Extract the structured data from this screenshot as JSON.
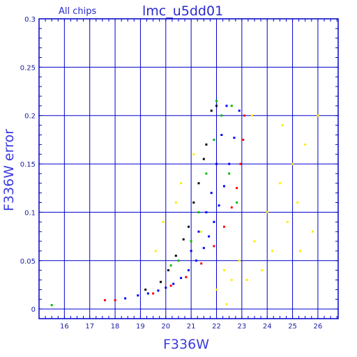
{
  "chart_data": {
    "type": "scatter",
    "title": "lmc_u5dd01",
    "subtitle": "All chips",
    "xlabel": "F336W",
    "ylabel": "F336W error",
    "xlim": [
      15.0,
      26.8
    ],
    "ylim": [
      -0.01,
      0.3
    ],
    "x_ticks": [
      16,
      17,
      18,
      19,
      20,
      21,
      22,
      23,
      24,
      25,
      26
    ],
    "y_ticks": [
      0,
      0.05,
      0.1,
      0.15,
      0.2,
      0.25,
      0.3
    ],
    "y_tick_labels": [
      "0",
      "0.05",
      "0.1",
      "0.15",
      "0.2",
      "0.25",
      "0.3"
    ],
    "grid": true,
    "colors": {
      "frame": "#0000cc",
      "grid": "#0000cc",
      "chip_black": "#000000",
      "chip_green": "#00bb00",
      "chip_blue": "#0000ff",
      "chip_red": "#ff0000",
      "outlier_yellow": "#ffee00"
    },
    "series": [
      {
        "color": "#0000ff",
        "points": [
          [
            18.4,
            0.011
          ],
          [
            18.9,
            0.014
          ],
          [
            19.3,
            0.016
          ],
          [
            19.7,
            0.019
          ],
          [
            20.0,
            0.022
          ],
          [
            20.3,
            0.026
          ],
          [
            20.6,
            0.032
          ],
          [
            20.9,
            0.04
          ],
          [
            21.2,
            0.05
          ],
          [
            21.5,
            0.063
          ],
          [
            21.7,
            0.075
          ],
          [
            21.9,
            0.09
          ],
          [
            22.1,
            0.107
          ],
          [
            22.3,
            0.127
          ],
          [
            22.5,
            0.15
          ],
          [
            22.7,
            0.177
          ],
          [
            22.9,
            0.205
          ],
          [
            21.0,
            0.06
          ],
          [
            21.3,
            0.08
          ],
          [
            21.6,
            0.1
          ],
          [
            21.8,
            0.12
          ],
          [
            22.0,
            0.15
          ],
          [
            22.2,
            0.18
          ],
          [
            22.4,
            0.21
          ]
        ]
      },
      {
        "color": "#ff0000",
        "points": [
          [
            17.6,
            0.009
          ],
          [
            18.0,
            0.009
          ],
          [
            19.5,
            0.016
          ],
          [
            20.2,
            0.024
          ],
          [
            20.8,
            0.033
          ],
          [
            21.4,
            0.047
          ],
          [
            21.9,
            0.065
          ],
          [
            22.3,
            0.085
          ],
          [
            22.6,
            0.105
          ],
          [
            22.8,
            0.125
          ],
          [
            22.95,
            0.15
          ],
          [
            23.05,
            0.175
          ],
          [
            23.1,
            0.2
          ]
        ]
      },
      {
        "color": "#00bb00",
        "points": [
          [
            15.5,
            0.004
          ],
          [
            20.2,
            0.045
          ],
          [
            20.5,
            0.05
          ],
          [
            21.0,
            0.07
          ],
          [
            21.3,
            0.1
          ],
          [
            21.6,
            0.14
          ],
          [
            21.9,
            0.175
          ],
          [
            22.2,
            0.2
          ],
          [
            22.5,
            0.14
          ],
          [
            22.8,
            0.11
          ],
          [
            22.0,
            0.215
          ],
          [
            22.6,
            0.21
          ]
        ]
      },
      {
        "color": "#000000",
        "points": [
          [
            19.2,
            0.02
          ],
          [
            19.8,
            0.028
          ],
          [
            20.1,
            0.04
          ],
          [
            20.4,
            0.055
          ],
          [
            20.7,
            0.072
          ],
          [
            20.9,
            0.085
          ],
          [
            21.1,
            0.11
          ],
          [
            21.3,
            0.13
          ],
          [
            21.5,
            0.155
          ],
          [
            21.6,
            0.17
          ],
          [
            21.8,
            0.205
          ],
          [
            22.0,
            0.21
          ]
        ]
      },
      {
        "color": "#ffee00",
        "points": [
          [
            19.6,
            0.06
          ],
          [
            19.9,
            0.09
          ],
          [
            20.4,
            0.11
          ],
          [
            20.6,
            0.13
          ],
          [
            21.1,
            0.16
          ],
          [
            21.4,
            0.08
          ],
          [
            22.0,
            0.02
          ],
          [
            22.3,
            0.04
          ],
          [
            22.6,
            0.03
          ],
          [
            22.9,
            0.05
          ],
          [
            23.2,
            0.03
          ],
          [
            23.5,
            0.07
          ],
          [
            23.8,
            0.04
          ],
          [
            24.0,
            0.1
          ],
          [
            24.2,
            0.06
          ],
          [
            24.5,
            0.13
          ],
          [
            24.8,
            0.09
          ],
          [
            25.0,
            0.15
          ],
          [
            25.2,
            0.11
          ],
          [
            25.5,
            0.17
          ],
          [
            25.8,
            0.08
          ],
          [
            26.0,
            0.2
          ],
          [
            23.4,
            0.2
          ],
          [
            24.6,
            0.19
          ],
          [
            25.3,
            0.06
          ],
          [
            22.4,
            0.005
          ]
        ]
      }
    ]
  }
}
